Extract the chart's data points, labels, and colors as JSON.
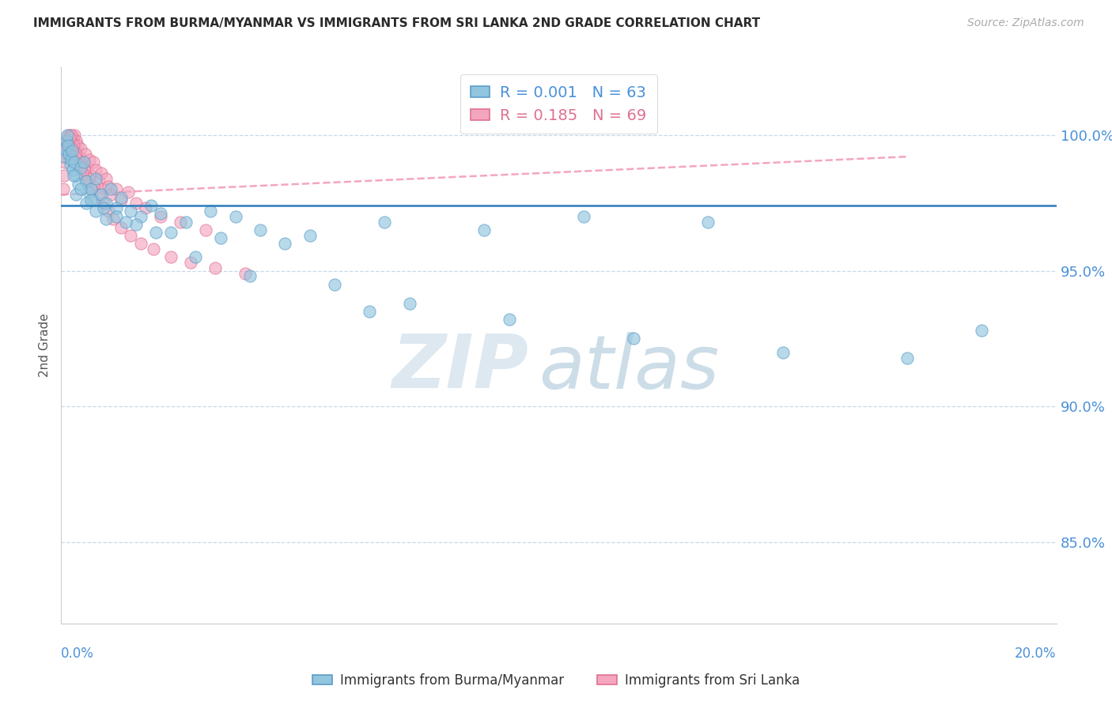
{
  "title": "IMMIGRANTS FROM BURMA/MYANMAR VS IMMIGRANTS FROM SRI LANKA 2ND GRADE CORRELATION CHART",
  "source": "Source: ZipAtlas.com",
  "ylabel": "2nd Grade",
  "xlim": [
    0.0,
    20.0
  ],
  "ylim": [
    82.0,
    102.5
  ],
  "yticks": [
    85.0,
    90.0,
    95.0,
    100.0
  ],
  "ytick_labels": [
    "85.0%",
    "90.0%",
    "95.0%",
    "100.0%"
  ],
  "blue_color": "#92c5de",
  "blue_edge": "#5b9dc9",
  "pink_color": "#f4a6bf",
  "pink_edge": "#e07090",
  "blue_scatter_x": [
    0.05,
    0.08,
    0.1,
    0.12,
    0.14,
    0.16,
    0.18,
    0.2,
    0.22,
    0.24,
    0.26,
    0.3,
    0.35,
    0.4,
    0.45,
    0.5,
    0.55,
    0.6,
    0.65,
    0.7,
    0.8,
    0.9,
    1.0,
    1.1,
    1.2,
    1.4,
    1.6,
    1.8,
    2.0,
    2.5,
    3.0,
    3.5,
    4.0,
    5.0,
    6.5,
    8.5,
    10.5,
    0.3,
    0.5,
    0.7,
    0.9,
    1.1,
    1.5,
    2.2,
    3.2,
    4.5,
    0.25,
    0.4,
    0.6,
    0.85,
    1.3,
    1.9,
    2.7,
    3.8,
    5.5,
    7.0,
    9.0,
    11.5,
    14.5,
    17.0,
    18.5,
    6.2,
    13.0
  ],
  "blue_scatter_y": [
    99.2,
    99.5,
    99.8,
    100.0,
    99.6,
    99.3,
    98.9,
    99.1,
    99.4,
    98.7,
    99.0,
    98.5,
    98.2,
    98.8,
    99.0,
    98.3,
    97.9,
    98.0,
    97.6,
    98.4,
    97.8,
    97.5,
    98.0,
    97.3,
    97.7,
    97.2,
    97.0,
    97.4,
    97.1,
    96.8,
    97.2,
    97.0,
    96.5,
    96.3,
    96.8,
    96.5,
    97.0,
    97.8,
    97.5,
    97.2,
    96.9,
    97.0,
    96.7,
    96.4,
    96.2,
    96.0,
    98.5,
    98.0,
    97.6,
    97.3,
    96.8,
    96.4,
    95.5,
    94.8,
    94.5,
    93.8,
    93.2,
    92.5,
    92.0,
    91.8,
    92.8,
    93.5,
    96.8
  ],
  "pink_scatter_x": [
    0.04,
    0.06,
    0.08,
    0.1,
    0.12,
    0.14,
    0.16,
    0.18,
    0.2,
    0.22,
    0.24,
    0.26,
    0.28,
    0.3,
    0.33,
    0.36,
    0.4,
    0.44,
    0.48,
    0.52,
    0.56,
    0.6,
    0.65,
    0.7,
    0.75,
    0.8,
    0.85,
    0.9,
    0.95,
    1.0,
    1.1,
    1.2,
    1.35,
    1.5,
    1.7,
    2.0,
    2.4,
    2.9,
    0.07,
    0.11,
    0.15,
    0.2,
    0.25,
    0.3,
    0.38,
    0.45,
    0.55,
    0.65,
    0.75,
    0.85,
    0.95,
    1.05,
    1.2,
    1.4,
    1.6,
    1.85,
    2.2,
    2.6,
    3.1,
    3.7,
    0.09,
    0.13,
    0.17,
    0.22,
    0.28,
    0.35,
    0.42,
    0.5,
    0.6
  ],
  "pink_scatter_y": [
    98.0,
    98.5,
    99.0,
    99.3,
    99.6,
    99.8,
    100.0,
    100.0,
    99.7,
    99.5,
    99.9,
    100.0,
    99.4,
    99.8,
    99.6,
    99.2,
    99.5,
    99.0,
    99.3,
    98.8,
    99.1,
    98.5,
    99.0,
    98.7,
    98.3,
    98.6,
    98.0,
    98.4,
    98.1,
    97.8,
    98.0,
    97.6,
    97.9,
    97.5,
    97.3,
    97.0,
    96.8,
    96.5,
    99.2,
    99.5,
    99.8,
    100.0,
    99.6,
    99.3,
    99.0,
    98.7,
    98.4,
    98.1,
    97.8,
    97.5,
    97.2,
    96.9,
    96.6,
    96.3,
    96.0,
    95.8,
    95.5,
    95.3,
    95.1,
    94.9,
    99.4,
    99.7,
    99.9,
    99.5,
    99.2,
    98.9,
    98.6,
    98.3,
    98.0
  ],
  "blue_hline_y": 97.4,
  "pink_trend_x0": 0.0,
  "pink_trend_x1": 17.0,
  "pink_trend_y0": 97.8,
  "pink_trend_y1": 99.2,
  "legend_R_blue": "R = 0.001",
  "legend_N_blue": "N = 63",
  "legend_R_pink": "R = 0.185",
  "legend_N_pink": "N = 69",
  "watermark_zip": "ZIP",
  "watermark_atlas": "atlas",
  "bottom_label_blue": "Immigrants from Burma/Myanmar",
  "bottom_label_pink": "Immigrants from Sri Lanka"
}
